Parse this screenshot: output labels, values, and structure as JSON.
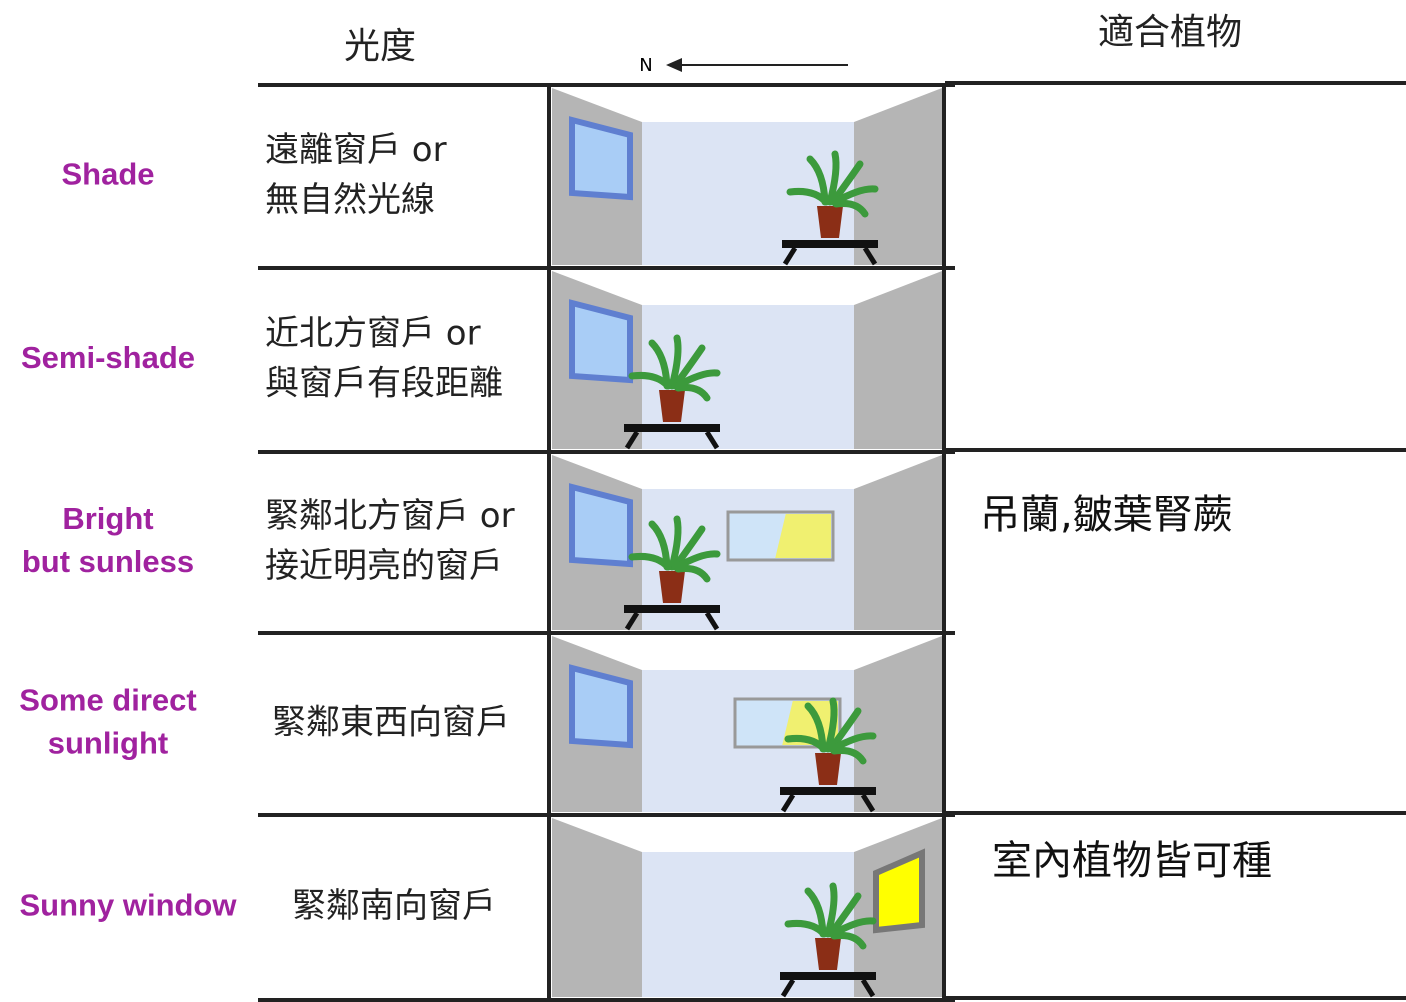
{
  "header": {
    "light": "光度",
    "north": "N",
    "plants": "適合植物"
  },
  "rows": [
    {
      "label": [
        "Shade"
      ],
      "description": [
        "遠離窗戶 or",
        "無自然光線"
      ]
    },
    {
      "label": [
        "Semi-shade"
      ],
      "description": [
        "近北方窗戶 or",
        "與窗戶有段距離"
      ]
    },
    {
      "label": [
        "Bright",
        "but sunless"
      ],
      "description": [
        "緊鄰北方窗戶 or",
        "接近明亮的窗戶"
      ],
      "plants": "吊蘭,皺葉腎蕨"
    },
    {
      "label": [
        "Some direct",
        "sunlight"
      ],
      "description": [
        "緊鄰東西向窗戶"
      ]
    },
    {
      "label": [
        "Sunny window"
      ],
      "description": [
        "緊鄰南向窗戶"
      ],
      "plants": "室內植物皆可種"
    }
  ]
}
